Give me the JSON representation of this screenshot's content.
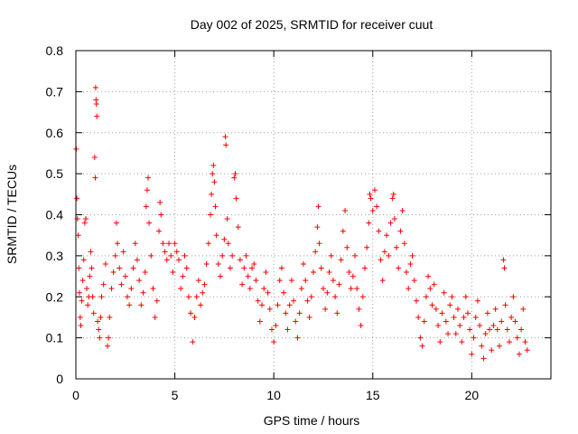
{
  "chart_data": {
    "type": "scatter",
    "title": "Day 002 of 2025, SRMTID for receiver cuut",
    "xlabel": "GPS time / hours",
    "ylabel": "SRMTID / TECUs",
    "xlim": [
      0,
      24
    ],
    "ylim": [
      0,
      0.8
    ],
    "xticks": [
      0,
      5,
      10,
      15,
      20
    ],
    "xtick_labels": [
      "0",
      "5",
      "10",
      "15",
      "20"
    ],
    "yticks": [
      0,
      0.1,
      0.2,
      0.3,
      0.4,
      0.5,
      0.6,
      0.7,
      0.8
    ],
    "ytick_labels": [
      "0",
      "0.1",
      "0.2",
      "0.3",
      "0.4",
      "0.5",
      "0.6",
      "0.7",
      "0.8"
    ],
    "grid": true,
    "marker": "+",
    "color": "#ff0000",
    "series": [
      {
        "name": "SRMTID",
        "points": [
          [
            0.02,
            0.56
          ],
          [
            0.05,
            0.44
          ],
          [
            0.08,
            0.39
          ],
          [
            0.12,
            0.35
          ],
          [
            0.15,
            0.27
          ],
          [
            0.18,
            0.21
          ],
          [
            0.22,
            0.15
          ],
          [
            0.25,
            0.13
          ],
          [
            0.3,
            0.19
          ],
          [
            0.35,
            0.24
          ],
          [
            0.4,
            0.29
          ],
          [
            0.45,
            0.38
          ],
          [
            0.5,
            0.39
          ],
          [
            0.55,
            0.22
          ],
          [
            0.6,
            0.18
          ],
          [
            0.65,
            0.2
          ],
          [
            0.7,
            0.25
          ],
          [
            0.75,
            0.31
          ],
          [
            0.8,
            0.27
          ],
          [
            0.85,
            0.2
          ],
          [
            0.9,
            0.16
          ],
          [
            0.95,
            0.54
          ],
          [
            0.98,
            0.49
          ],
          [
            1.0,
            0.71
          ],
          [
            1.02,
            0.68
          ],
          [
            1.04,
            0.67
          ],
          [
            1.06,
            0.64
          ],
          [
            1.1,
            0.14
          ],
          [
            1.15,
            0.12
          ],
          [
            1.2,
            0.1
          ],
          [
            1.25,
            0.15
          ],
          [
            1.3,
            0.2
          ],
          [
            1.4,
            0.23
          ],
          [
            1.5,
            0.28
          ],
          [
            1.6,
            0.08
          ],
          [
            1.65,
            0.1
          ],
          [
            1.7,
            0.15
          ],
          [
            1.8,
            0.22
          ],
          [
            1.9,
            0.26
          ],
          [
            2.0,
            0.3
          ],
          [
            2.05,
            0.38
          ],
          [
            2.1,
            0.33
          ],
          [
            2.2,
            0.27
          ],
          [
            2.3,
            0.23
          ],
          [
            2.4,
            0.31
          ],
          [
            2.5,
            0.25
          ],
          [
            2.6,
            0.2
          ],
          [
            2.7,
            0.18
          ],
          [
            2.8,
            0.22
          ],
          [
            2.9,
            0.27
          ],
          [
            3.0,
            0.33
          ],
          [
            3.1,
            0.29
          ],
          [
            3.2,
            0.24
          ],
          [
            3.3,
            0.18
          ],
          [
            3.4,
            0.21
          ],
          [
            3.5,
            0.26
          ],
          [
            3.55,
            0.42
          ],
          [
            3.6,
            0.46
          ],
          [
            3.65,
            0.49
          ],
          [
            3.7,
            0.38
          ],
          [
            3.8,
            0.3
          ],
          [
            3.9,
            0.22
          ],
          [
            4.0,
            0.15
          ],
          [
            4.1,
            0.19
          ],
          [
            4.2,
            0.36
          ],
          [
            4.25,
            0.43
          ],
          [
            4.3,
            0.4
          ],
          [
            4.4,
            0.33
          ],
          [
            4.5,
            0.31
          ],
          [
            4.6,
            0.29
          ],
          [
            4.7,
            0.33
          ],
          [
            4.8,
            0.3
          ],
          [
            4.9,
            0.26
          ],
          [
            5.0,
            0.33
          ],
          [
            5.1,
            0.31
          ],
          [
            5.2,
            0.29
          ],
          [
            5.3,
            0.22
          ],
          [
            5.4,
            0.25
          ],
          [
            5.5,
            0.3
          ],
          [
            5.6,
            0.27
          ],
          [
            5.7,
            0.2
          ],
          [
            5.8,
            0.16
          ],
          [
            5.9,
            0.09
          ],
          [
            6.0,
            0.15
          ],
          [
            6.1,
            0.2
          ],
          [
            6.2,
            0.24
          ],
          [
            6.3,
            0.18
          ],
          [
            6.4,
            0.21
          ],
          [
            6.5,
            0.23
          ],
          [
            6.6,
            0.28
          ],
          [
            6.7,
            0.33
          ],
          [
            6.8,
            0.4
          ],
          [
            6.85,
            0.45
          ],
          [
            6.9,
            0.5
          ],
          [
            6.95,
            0.52
          ],
          [
            7.0,
            0.48
          ],
          [
            7.05,
            0.42
          ],
          [
            7.1,
            0.35
          ],
          [
            7.2,
            0.28
          ],
          [
            7.3,
            0.25
          ],
          [
            7.4,
            0.3
          ],
          [
            7.5,
            0.34
          ],
          [
            7.55,
            0.59
          ],
          [
            7.58,
            0.57
          ],
          [
            7.65,
            0.39
          ],
          [
            7.7,
            0.33
          ],
          [
            7.8,
            0.27
          ],
          [
            7.9,
            0.3
          ],
          [
            8.0,
            0.49
          ],
          [
            8.05,
            0.5
          ],
          [
            8.1,
            0.44
          ],
          [
            8.2,
            0.37
          ],
          [
            8.3,
            0.29
          ],
          [
            8.4,
            0.23
          ],
          [
            8.5,
            0.27
          ],
          [
            8.6,
            0.3
          ],
          [
            8.7,
            0.25
          ],
          [
            8.8,
            0.22
          ],
          [
            8.9,
            0.27
          ],
          [
            9.0,
            0.28
          ],
          [
            9.1,
            0.24
          ],
          [
            9.2,
            0.19
          ],
          [
            9.3,
            0.14
          ],
          [
            9.4,
            0.18
          ],
          [
            9.5,
            0.22
          ],
          [
            9.6,
            0.26
          ],
          [
            9.7,
            0.21
          ],
          [
            9.8,
            0.17
          ],
          [
            9.9,
            0.12
          ],
          [
            10.0,
            0.09
          ],
          [
            10.1,
            0.13
          ],
          [
            10.2,
            0.18
          ],
          [
            10.3,
            0.24
          ],
          [
            10.4,
            0.27
          ],
          [
            10.5,
            0.21
          ],
          [
            10.6,
            0.16
          ],
          [
            10.7,
            0.12
          ],
          [
            10.8,
            0.18
          ],
          [
            10.9,
            0.24
          ],
          [
            11.0,
            0.19
          ],
          [
            11.1,
            0.14
          ],
          [
            11.2,
            0.1
          ],
          [
            11.3,
            0.16
          ],
          [
            11.4,
            0.22
          ],
          [
            11.5,
            0.28
          ],
          [
            11.6,
            0.24
          ],
          [
            11.7,
            0.19
          ],
          [
            11.8,
            0.15
          ],
          [
            11.9,
            0.2
          ],
          [
            12.0,
            0.26
          ],
          [
            12.1,
            0.31
          ],
          [
            12.2,
            0.37
          ],
          [
            12.25,
            0.42
          ],
          [
            12.3,
            0.33
          ],
          [
            12.4,
            0.27
          ],
          [
            12.5,
            0.22
          ],
          [
            12.6,
            0.17
          ],
          [
            12.7,
            0.21
          ],
          [
            12.8,
            0.26
          ],
          [
            12.9,
            0.3
          ],
          [
            13.0,
            0.24
          ],
          [
            13.1,
            0.2
          ],
          [
            13.2,
            0.16
          ],
          [
            13.3,
            0.23
          ],
          [
            13.4,
            0.29
          ],
          [
            13.5,
            0.36
          ],
          [
            13.6,
            0.41
          ],
          [
            13.7,
            0.32
          ],
          [
            13.8,
            0.26
          ],
          [
            13.9,
            0.22
          ],
          [
            14.0,
            0.25
          ],
          [
            14.1,
            0.3
          ],
          [
            14.2,
            0.22
          ],
          [
            14.3,
            0.17
          ],
          [
            14.4,
            0.13
          ],
          [
            14.5,
            0.2
          ],
          [
            14.6,
            0.27
          ],
          [
            14.7,
            0.32
          ],
          [
            14.8,
            0.38
          ],
          [
            14.85,
            0.45
          ],
          [
            14.9,
            0.44
          ],
          [
            15.0,
            0.41
          ],
          [
            15.1,
            0.46
          ],
          [
            15.2,
            0.42
          ],
          [
            15.3,
            0.36
          ],
          [
            15.4,
            0.29
          ],
          [
            15.5,
            0.24
          ],
          [
            15.6,
            0.31
          ],
          [
            15.7,
            0.35
          ],
          [
            15.8,
            0.3
          ],
          [
            15.9,
            0.38
          ],
          [
            16.0,
            0.44
          ],
          [
            16.05,
            0.45
          ],
          [
            16.1,
            0.39
          ],
          [
            16.2,
            0.32
          ],
          [
            16.3,
            0.27
          ],
          [
            16.4,
            0.36
          ],
          [
            16.5,
            0.41
          ],
          [
            16.6,
            0.33
          ],
          [
            16.7,
            0.26
          ],
          [
            16.8,
            0.22
          ],
          [
            16.9,
            0.28
          ],
          [
            17.0,
            0.3
          ],
          [
            17.1,
            0.24
          ],
          [
            17.2,
            0.19
          ],
          [
            17.3,
            0.15
          ],
          [
            17.4,
            0.1
          ],
          [
            17.5,
            0.08
          ],
          [
            17.6,
            0.14
          ],
          [
            17.7,
            0.2
          ],
          [
            17.8,
            0.25
          ],
          [
            17.9,
            0.22
          ],
          [
            18.0,
            0.18
          ],
          [
            18.1,
            0.23
          ],
          [
            18.2,
            0.17
          ],
          [
            18.3,
            0.13
          ],
          [
            18.4,
            0.09
          ],
          [
            18.5,
            0.16
          ],
          [
            18.6,
            0.21
          ],
          [
            18.7,
            0.14
          ],
          [
            18.8,
            0.11
          ],
          [
            18.9,
            0.18
          ],
          [
            19.0,
            0.2
          ],
          [
            19.1,
            0.15
          ],
          [
            19.2,
            0.11
          ],
          [
            19.3,
            0.17
          ],
          [
            19.4,
            0.13
          ],
          [
            19.5,
            0.09
          ],
          [
            19.6,
            0.15
          ],
          [
            19.7,
            0.2
          ],
          [
            19.8,
            0.16
          ],
          [
            19.9,
            0.12
          ],
          [
            20.0,
            0.06
          ],
          [
            20.1,
            0.1
          ],
          [
            20.2,
            0.15
          ],
          [
            20.3,
            0.19
          ],
          [
            20.4,
            0.13
          ],
          [
            20.5,
            0.08
          ],
          [
            20.6,
            0.05
          ],
          [
            20.7,
            0.11
          ],
          [
            20.8,
            0.16
          ],
          [
            20.9,
            0.12
          ],
          [
            21.0,
            0.07
          ],
          [
            21.1,
            0.13
          ],
          [
            21.2,
            0.17
          ],
          [
            21.3,
            0.12
          ],
          [
            21.4,
            0.08
          ],
          [
            21.5,
            0.14
          ],
          [
            21.6,
            0.29
          ],
          [
            21.65,
            0.27
          ],
          [
            21.7,
            0.18
          ],
          [
            21.8,
            0.12
          ],
          [
            21.9,
            0.09
          ],
          [
            22.0,
            0.15
          ],
          [
            22.1,
            0.2
          ],
          [
            22.2,
            0.14
          ],
          [
            22.3,
            0.1
          ],
          [
            22.4,
            0.06
          ],
          [
            22.5,
            0.12
          ],
          [
            22.6,
            0.17
          ],
          [
            22.7,
            0.09
          ],
          [
            22.8,
            0.07
          ]
        ]
      }
    ]
  }
}
